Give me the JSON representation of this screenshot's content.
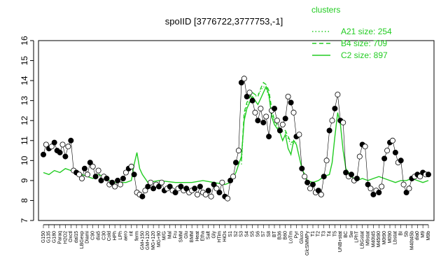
{
  "chart_data": {
    "type": "line",
    "title": "spoIID [3776722,3777753,-1]",
    "xlabel": "",
    "ylabel": "",
    "ylim": [
      7,
      16
    ],
    "yticks": [
      7,
      8,
      9,
      10,
      11,
      12,
      13,
      14,
      15,
      16
    ],
    "grid": false,
    "legend": {
      "title": "clusters",
      "placement": "top-right",
      "color": "#22cc22",
      "entries": [
        {
          "label": "A21 size: 254",
          "style": "dotted"
        },
        {
          "label": "B4 size: 709",
          "style": "dashed"
        },
        {
          "label": "C2 size: 897",
          "style": "solid"
        }
      ]
    },
    "xtick_labels": [
      "G150",
      "G135",
      "G180",
      "Paraq",
      "H2O2",
      "Oxctl",
      "dal15",
      "LBGexp",
      "Diami",
      "C90",
      "dia5",
      "C30",
      "Cold",
      "HPh",
      "LPh",
      "aero",
      "nit",
      "ferm",
      "GM+150",
      "GM+120",
      "MG+120",
      "MG+90",
      "M/G",
      "Mal",
      "Fru",
      "SMM",
      "Glu",
      "BMM",
      "Heat",
      "Etha",
      "Salt",
      "Gly",
      "HTim",
      "HiOs",
      "S1",
      "S2",
      "S3",
      "S4",
      "S5",
      "S6",
      "S7",
      "S8",
      "BT",
      "B36",
      "B60",
      "LoTm",
      "Pyr",
      "Gluco",
      "GlcSMMPy",
      "T1",
      "T2",
      "T3",
      "T4",
      "T5",
      "UNB+stat",
      "BC",
      "Sw",
      "LPhT",
      "LBGstat",
      "M9stat",
      "M40t45",
      "M45t90",
      "M0t90",
      "M090",
      "Lbstat",
      "BI",
      "Sb",
      "M40t45b",
      "dia0",
      "M9",
      "M9b"
    ],
    "c2_line": [
      [
        0,
        9.4
      ],
      [
        1,
        9.3
      ],
      [
        2,
        9.5
      ],
      [
        3,
        9.4
      ],
      [
        4,
        9.6
      ],
      [
        5,
        9.5
      ],
      [
        6,
        9.4
      ],
      [
        7,
        9.3
      ],
      [
        8,
        9.2
      ],
      [
        9,
        9.1
      ],
      [
        10,
        9.3
      ],
      [
        11,
        9.2
      ],
      [
        12,
        9.0
      ],
      [
        13,
        8.9
      ],
      [
        14,
        8.9
      ],
      [
        15,
        8.9
      ],
      [
        16,
        9.0
      ],
      [
        16.5,
        9.8
      ],
      [
        17,
        10.4
      ],
      [
        17.5,
        9.6
      ],
      [
        18,
        9.3
      ],
      [
        19,
        8.9
      ],
      [
        21,
        9.0
      ],
      [
        24,
        8.9
      ],
      [
        27,
        8.9
      ],
      [
        29,
        9.0
      ],
      [
        31,
        8.9
      ],
      [
        33,
        8.8
      ],
      [
        34,
        8.9
      ],
      [
        35,
        9.4
      ],
      [
        35.5,
        9.8
      ],
      [
        36,
        10.2
      ],
      [
        36.5,
        12.0
      ],
      [
        37,
        12.6
      ],
      [
        37.5,
        12.9
      ],
      [
        38,
        13.2
      ],
      [
        38.5,
        13.0
      ],
      [
        39,
        12.8
      ],
      [
        39.5,
        13.1
      ],
      [
        40,
        13.4
      ],
      [
        40.5,
        13.7
      ],
      [
        41,
        13.3
      ],
      [
        41.5,
        12.2
      ],
      [
        42,
        11.8
      ],
      [
        43,
        11.4
      ],
      [
        43.5,
        11.0
      ],
      [
        44,
        11.3
      ],
      [
        44.5,
        10.6
      ],
      [
        45,
        10.3
      ],
      [
        45.5,
        11.0
      ],
      [
        46,
        10.8
      ],
      [
        47,
        9.6
      ],
      [
        48,
        9.0
      ],
      [
        49,
        8.9
      ],
      [
        50,
        9.0
      ],
      [
        51,
        9.2
      ],
      [
        52,
        9.3
      ],
      [
        52.5,
        9.9
      ],
      [
        53,
        11.2
      ],
      [
        53.5,
        12.4
      ],
      [
        54,
        11.8
      ],
      [
        54.5,
        10.5
      ],
      [
        55,
        9.6
      ],
      [
        56,
        9.2
      ],
      [
        57,
        9.0
      ],
      [
        58,
        9.1
      ],
      [
        59,
        9.0
      ],
      [
        60,
        9.1
      ],
      [
        61,
        9.2
      ],
      [
        62,
        9.1
      ],
      [
        63,
        9.0
      ],
      [
        64,
        8.9
      ],
      [
        65,
        9.0
      ],
      [
        66,
        9.0
      ],
      [
        67,
        9.1
      ],
      [
        68,
        9.0
      ],
      [
        69,
        8.9
      ],
      [
        70,
        9.0
      ]
    ],
    "b4_line": [
      [
        36,
        10.0
      ],
      [
        36.5,
        12.4
      ],
      [
        37,
        12.9
      ],
      [
        38,
        13.4
      ],
      [
        39,
        13.2
      ],
      [
        39.5,
        13.6
      ],
      [
        40,
        13.9
      ],
      [
        40.5,
        13.8
      ],
      [
        41,
        13.5
      ],
      [
        41.5,
        12.6
      ],
      [
        42,
        12.0
      ],
      [
        43,
        11.6
      ],
      [
        44,
        11.5
      ],
      [
        45,
        10.9
      ],
      [
        46,
        11.0
      ]
    ],
    "a21_line": [
      [
        36,
        9.8
      ],
      [
        36.5,
        12.2
      ],
      [
        37,
        12.8
      ],
      [
        38,
        13.1
      ],
      [
        39,
        13.3
      ],
      [
        39.5,
        13.5
      ],
      [
        40,
        13.7
      ],
      [
        40.5,
        13.6
      ],
      [
        41,
        13.2
      ],
      [
        41.5,
        12.4
      ],
      [
        42,
        11.9
      ],
      [
        43,
        11.5
      ],
      [
        44,
        11.4
      ],
      [
        45,
        10.8
      ],
      [
        46,
        10.9
      ]
    ],
    "points": [
      [
        0,
        10.3
      ],
      [
        0.5,
        10.8
      ],
      [
        1,
        10.6
      ],
      [
        1.5,
        10.7
      ],
      [
        2,
        10.9
      ],
      [
        2.5,
        10.5
      ],
      [
        3,
        10.4
      ],
      [
        3.5,
        10.8
      ],
      [
        4,
        10.2
      ],
      [
        4.5,
        10.7
      ],
      [
        5,
        11.0
      ],
      [
        5.5,
        9.5
      ],
      [
        6,
        9.4
      ],
      [
        6.5,
        9.3
      ],
      [
        7,
        9.1
      ],
      [
        7.5,
        9.6
      ],
      [
        8,
        9.3
      ],
      [
        8.5,
        9.9
      ],
      [
        9,
        9.7
      ],
      [
        9.5,
        9.2
      ],
      [
        10,
        9.5
      ],
      [
        10.5,
        9.0
      ],
      [
        11,
        9.2
      ],
      [
        11.5,
        9.1
      ],
      [
        12,
        8.8
      ],
      [
        12.5,
        8.9
      ],
      [
        13,
        8.7
      ],
      [
        13.5,
        9.0
      ],
      [
        14,
        8.8
      ],
      [
        14.5,
        9.1
      ],
      [
        15,
        9.4
      ],
      [
        15.5,
        9.6
      ],
      [
        16,
        9.7
      ],
      [
        16.5,
        9.3
      ],
      [
        17,
        8.4
      ],
      [
        17.5,
        8.3
      ],
      [
        18,
        8.2
      ],
      [
        18.5,
        8.5
      ],
      [
        19,
        8.7
      ],
      [
        19.5,
        8.9
      ],
      [
        20,
        8.6
      ],
      [
        20.5,
        8.8
      ],
      [
        21,
        8.7
      ],
      [
        21.5,
        8.9
      ],
      [
        22,
        8.5
      ],
      [
        22.5,
        8.6
      ],
      [
        23,
        8.7
      ],
      [
        23.5,
        8.5
      ],
      [
        24,
        8.4
      ],
      [
        24.5,
        8.6
      ],
      [
        25,
        8.7
      ],
      [
        25.5,
        8.5
      ],
      [
        26,
        8.6
      ],
      [
        26.5,
        8.4
      ],
      [
        27,
        8.5
      ],
      [
        27.5,
        8.6
      ],
      [
        28,
        8.3
      ],
      [
        28.5,
        8.7
      ],
      [
        29,
        8.4
      ],
      [
        29.5,
        8.3
      ],
      [
        30,
        8.5
      ],
      [
        30.5,
        8.2
      ],
      [
        31,
        8.8
      ],
      [
        31.5,
        8.6
      ],
      [
        32,
        8.4
      ],
      [
        32.5,
        8.9
      ],
      [
        33,
        8.2
      ],
      [
        33.5,
        8.1
      ],
      [
        34,
        9.0
      ],
      [
        34.5,
        9.2
      ],
      [
        35,
        9.9
      ],
      [
        35.5,
        10.5
      ],
      [
        36,
        13.9
      ],
      [
        36.5,
        14.1
      ],
      [
        37,
        13.2
      ],
      [
        37.5,
        13.4
      ],
      [
        38,
        13.0
      ],
      [
        38.5,
        12.4
      ],
      [
        39,
        12.0
      ],
      [
        39.5,
        12.6
      ],
      [
        40,
        11.9
      ],
      [
        40.5,
        12.2
      ],
      [
        41,
        11.2
      ],
      [
        41.5,
        12.5
      ],
      [
        42,
        12.6
      ],
      [
        42.5,
        12.0
      ],
      [
        43,
        11.5
      ],
      [
        43.5,
        11.8
      ],
      [
        44,
        12.1
      ],
      [
        44.5,
        13.2
      ],
      [
        45,
        12.9
      ],
      [
        45.5,
        12.4
      ],
      [
        46,
        11.2
      ],
      [
        46.5,
        11.3
      ],
      [
        47,
        9.6
      ],
      [
        47.5,
        9.2
      ],
      [
        48,
        8.9
      ],
      [
        48.5,
        8.6
      ],
      [
        49,
        8.8
      ],
      [
        49.5,
        8.4
      ],
      [
        50,
        8.5
      ],
      [
        50.5,
        8.3
      ],
      [
        51,
        9.2
      ],
      [
        51.5,
        10.0
      ],
      [
        52,
        11.5
      ],
      [
        52.5,
        12.0
      ],
      [
        53,
        12.6
      ],
      [
        53.5,
        13.3
      ],
      [
        54,
        12.0
      ],
      [
        54.5,
        11.9
      ],
      [
        55,
        9.4
      ],
      [
        55.5,
        9.2
      ],
      [
        56,
        9.3
      ],
      [
        56.5,
        9.0
      ],
      [
        57,
        9.1
      ],
      [
        57.5,
        10.2
      ],
      [
        58,
        10.8
      ],
      [
        58.5,
        10.7
      ],
      [
        59,
        8.8
      ],
      [
        59.5,
        8.6
      ],
      [
        60,
        8.3
      ],
      [
        60.5,
        8.5
      ],
      [
        61,
        8.4
      ],
      [
        61.5,
        8.7
      ],
      [
        62,
        10.1
      ],
      [
        62.5,
        10.5
      ],
      [
        63,
        10.9
      ],
      [
        63.5,
        11.0
      ],
      [
        64,
        10.4
      ],
      [
        64.5,
        9.9
      ],
      [
        65,
        10.0
      ],
      [
        65.5,
        8.8
      ],
      [
        66,
        8.4
      ],
      [
        66.5,
        8.6
      ],
      [
        67,
        9.1
      ],
      [
        67.5,
        9.2
      ],
      [
        68,
        9.3
      ],
      [
        68.5,
        9.2
      ],
      [
        69,
        9.4
      ],
      [
        69.5,
        9.3
      ],
      [
        70,
        9.3
      ]
    ],
    "point_fill_note": "mix of filled and hollow circles",
    "filled_indices": [
      0,
      2,
      4,
      5,
      6,
      8,
      10,
      12,
      15,
      17,
      19,
      21,
      23,
      25,
      27,
      29,
      31,
      33,
      36,
      38,
      40,
      42,
      44,
      46,
      48,
      50,
      52,
      55,
      57,
      60,
      62,
      64,
      66,
      68,
      70,
      72,
      74,
      76,
      78,
      80,
      82,
      84,
      86,
      88,
      90,
      92,
      94,
      96,
      98,
      100,
      102,
      104,
      106,
      108,
      110,
      112,
      114,
      116,
      118,
      120,
      122,
      124,
      126,
      128,
      130,
      132,
      134,
      136,
      138,
      140
    ]
  }
}
